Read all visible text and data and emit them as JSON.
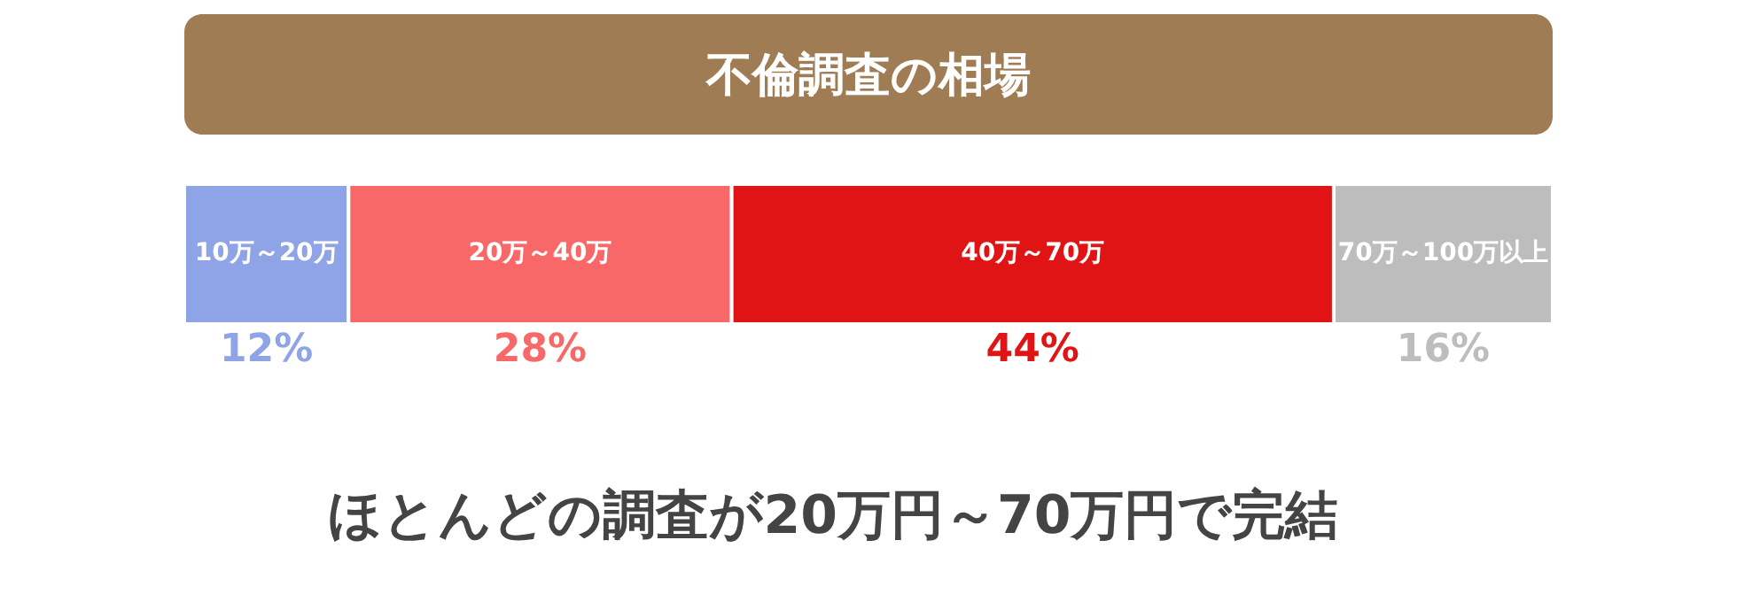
{
  "chart_data": {
    "type": "bar",
    "orientation": "horizontal",
    "stacked": true,
    "title": "不倫調査の相場",
    "categories": [
      null
    ],
    "series": [
      {
        "name": "10万～20万",
        "color": "#8ea4e6",
        "values": [
          12
        ],
        "value_labels": [
          "12%"
        ]
      },
      {
        "name": "20万～40万",
        "color": "#f86868",
        "values": [
          28
        ],
        "value_labels": [
          "28%"
        ]
      },
      {
        "name": "40万～70万",
        "color": "#e01414",
        "values": [
          44
        ],
        "value_labels": [
          "44%"
        ]
      },
      {
        "name": "70万～100万以上",
        "color": "#bdbdbd",
        "values": [
          16
        ],
        "value_labels": [
          "16%"
        ]
      }
    ],
    "annotations": [
      "ほとんどの調査が20万円～70万円で完結"
    ]
  }
}
